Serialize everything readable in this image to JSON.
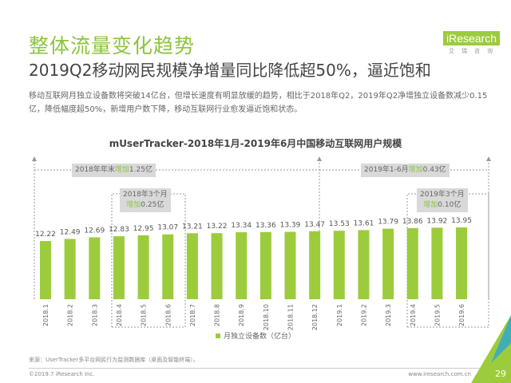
{
  "header": {
    "title": "整体流量变化趋势",
    "subtitle": "2019Q2移动网民规模净增量同比降低超50%，逼近饱和",
    "description": "移动互联网月独立设备数将突破14亿台，但增长速度有明显放缓的趋势，相比于2018年Q2，2019年Q2净增独立设备数减少0.15亿，降低幅度超50%，新增用户数下降，移动互联网行业愈发逼近饱和状态。"
  },
  "logo": {
    "brand": "iResearch",
    "sub": "艾瑞咨询"
  },
  "chart_data": {
    "type": "bar",
    "title": "mUserTracker-2018年1月-2019年6月中国移动互联网用户规模",
    "categories": [
      "2018.1",
      "2018.2",
      "2018.3",
      "2018.4",
      "2018.5",
      "2018.6",
      "2018.7",
      "2018.8",
      "2018.9",
      "2018.10",
      "2018.11",
      "2018.12",
      "2019.1",
      "2019.2",
      "2019.3",
      "2019.4",
      "2019.5",
      "2019.6"
    ],
    "series": [
      {
        "name": "月独立设备数（亿台）",
        "values": [
          12.22,
          12.49,
          12.69,
          12.83,
          12.95,
          13.07,
          13.21,
          13.22,
          13.34,
          13.36,
          13.39,
          13.47,
          13.53,
          13.61,
          13.79,
          13.86,
          13.92,
          13.95
        ]
      }
    ],
    "ylim": [
      4.8,
      22
    ],
    "color": "#9ccc3c",
    "annotations": [
      {
        "pre": "2018年年末",
        "hl": "增加",
        "post": "1.25亿"
      },
      {
        "pre": "2019年1-6月",
        "hl": "增加",
        "post": "0.43亿"
      },
      {
        "pre": "2018年3个月",
        "hl": "增加",
        "post": "0.25亿"
      },
      {
        "pre": "2019年3个月",
        "hl": "增加",
        "post": "0.10亿"
      }
    ],
    "legend": "月独立设备数（亿台）"
  },
  "footer": {
    "source": "来源：UserTracker多平台网民行为监测数据库（桌面及智能终端）。",
    "copyright": "©2019.7 iResearch Inc.",
    "site": "www.iresearch.com.cn",
    "page": "29"
  }
}
